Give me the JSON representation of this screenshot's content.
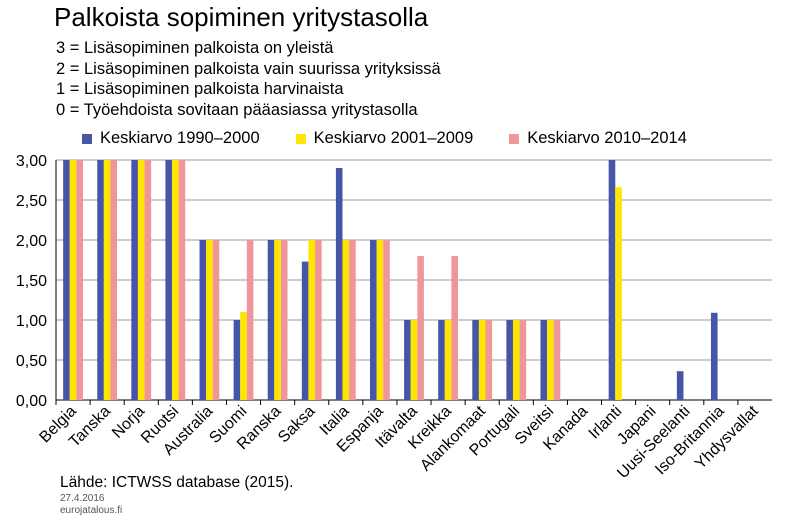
{
  "chart_data": {
    "type": "bar",
    "title": "Palkoista sopiminen yritystasolla",
    "notes": [
      "3 = Lisäsopiminen palkoista on yleistä",
      "2 = Lisäsopiminen palkoista vain suurissa yrityksissä",
      "1 = Lisäsopiminen palkoista harvinaista",
      "0 = Työehdoista sovitaan pääasiassa yritystasolla"
    ],
    "categories": [
      "Belgia",
      "Tanska",
      "Norja",
      "Ruotsi",
      "Australia",
      "Suomi",
      "Ranska",
      "Saksa",
      "Italia",
      "Espanja",
      "Itävalta",
      "Kreikka",
      "Alankomaat",
      "Portugali",
      "Sveitsi",
      "Kanada",
      "Irlanti",
      "Japani",
      "Uusi-Seelanti",
      "Iso-Britannia",
      "Yhdysvallat"
    ],
    "series": [
      {
        "name": "Keskiarvo 1990–2000",
        "color": "#4655A5",
        "values": [
          3.0,
          3.0,
          3.0,
          3.0,
          2.0,
          1.0,
          2.0,
          1.73,
          2.9,
          2.0,
          1.0,
          1.0,
          1.0,
          1.0,
          1.0,
          null,
          3.0,
          null,
          0.36,
          1.09,
          null
        ]
      },
      {
        "name": "Keskiarvo 2001–2009",
        "color": "#FFE600",
        "values": [
          3.0,
          3.0,
          3.0,
          3.0,
          2.0,
          1.1,
          2.0,
          2.0,
          2.0,
          2.0,
          1.0,
          1.0,
          1.0,
          1.0,
          1.0,
          null,
          2.66,
          null,
          null,
          null,
          null
        ]
      },
      {
        "name": "Keskiarvo 2010–2014",
        "color": "#F0969A",
        "values": [
          3.0,
          3.0,
          3.0,
          3.0,
          2.0,
          2.0,
          2.0,
          2.0,
          2.0,
          2.0,
          1.8,
          1.8,
          1.0,
          1.0,
          1.0,
          null,
          null,
          null,
          null,
          null,
          null
        ]
      }
    ],
    "yticks": [
      "0,00",
      "0,50",
      "1,00",
      "1,50",
      "2,00",
      "2,50",
      "3,00"
    ],
    "ylim": [
      0,
      3
    ],
    "grid": true,
    "legend_position": "top",
    "source": "Lähde: ICTWSS database (2015).",
    "date": "27.4.2016",
    "site": "eurojatalous.fi"
  }
}
